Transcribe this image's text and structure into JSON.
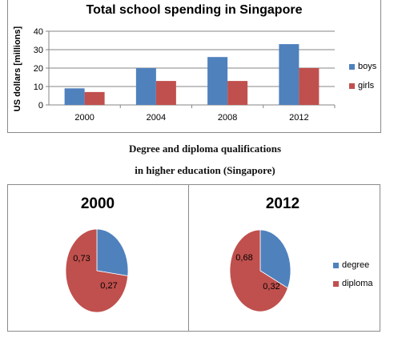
{
  "colors": {
    "boys": "#4f81bd",
    "girls": "#c0504d",
    "degree": "#4f81bd",
    "diploma": "#c0504d",
    "axis": "#868686",
    "grid": "#868686"
  },
  "caption_line1": "Degree and diploma qualifications",
  "caption_line2": "in higher education (Singapore)",
  "chart_data": [
    {
      "type": "bar",
      "title": "Total school spending in Singapore",
      "xlabel": "",
      "ylabel": "US dollars [millions]",
      "categories": [
        "2000",
        "2004",
        "2008",
        "2012"
      ],
      "series": [
        {
          "name": "boys",
          "values": [
            9,
            20,
            26,
            33
          ]
        },
        {
          "name": "girls",
          "values": [
            7,
            13,
            13,
            20
          ]
        }
      ],
      "ylim": [
        0,
        40
      ],
      "yticks": [
        "0",
        "10",
        "20",
        "30",
        "40"
      ],
      "grid": true,
      "legend": "right"
    },
    {
      "type": "pie",
      "title": "2000",
      "slices": [
        {
          "name": "degree",
          "value": 0.27,
          "label": "0,27"
        },
        {
          "name": "diploma",
          "value": 0.73,
          "label": "0,73"
        }
      ]
    },
    {
      "type": "pie",
      "title": "2012",
      "slices": [
        {
          "name": "degree",
          "value": 0.32,
          "label": "0,32"
        },
        {
          "name": "diploma",
          "value": 0.68,
          "label": "0,68"
        }
      ],
      "legend": "right"
    }
  ]
}
